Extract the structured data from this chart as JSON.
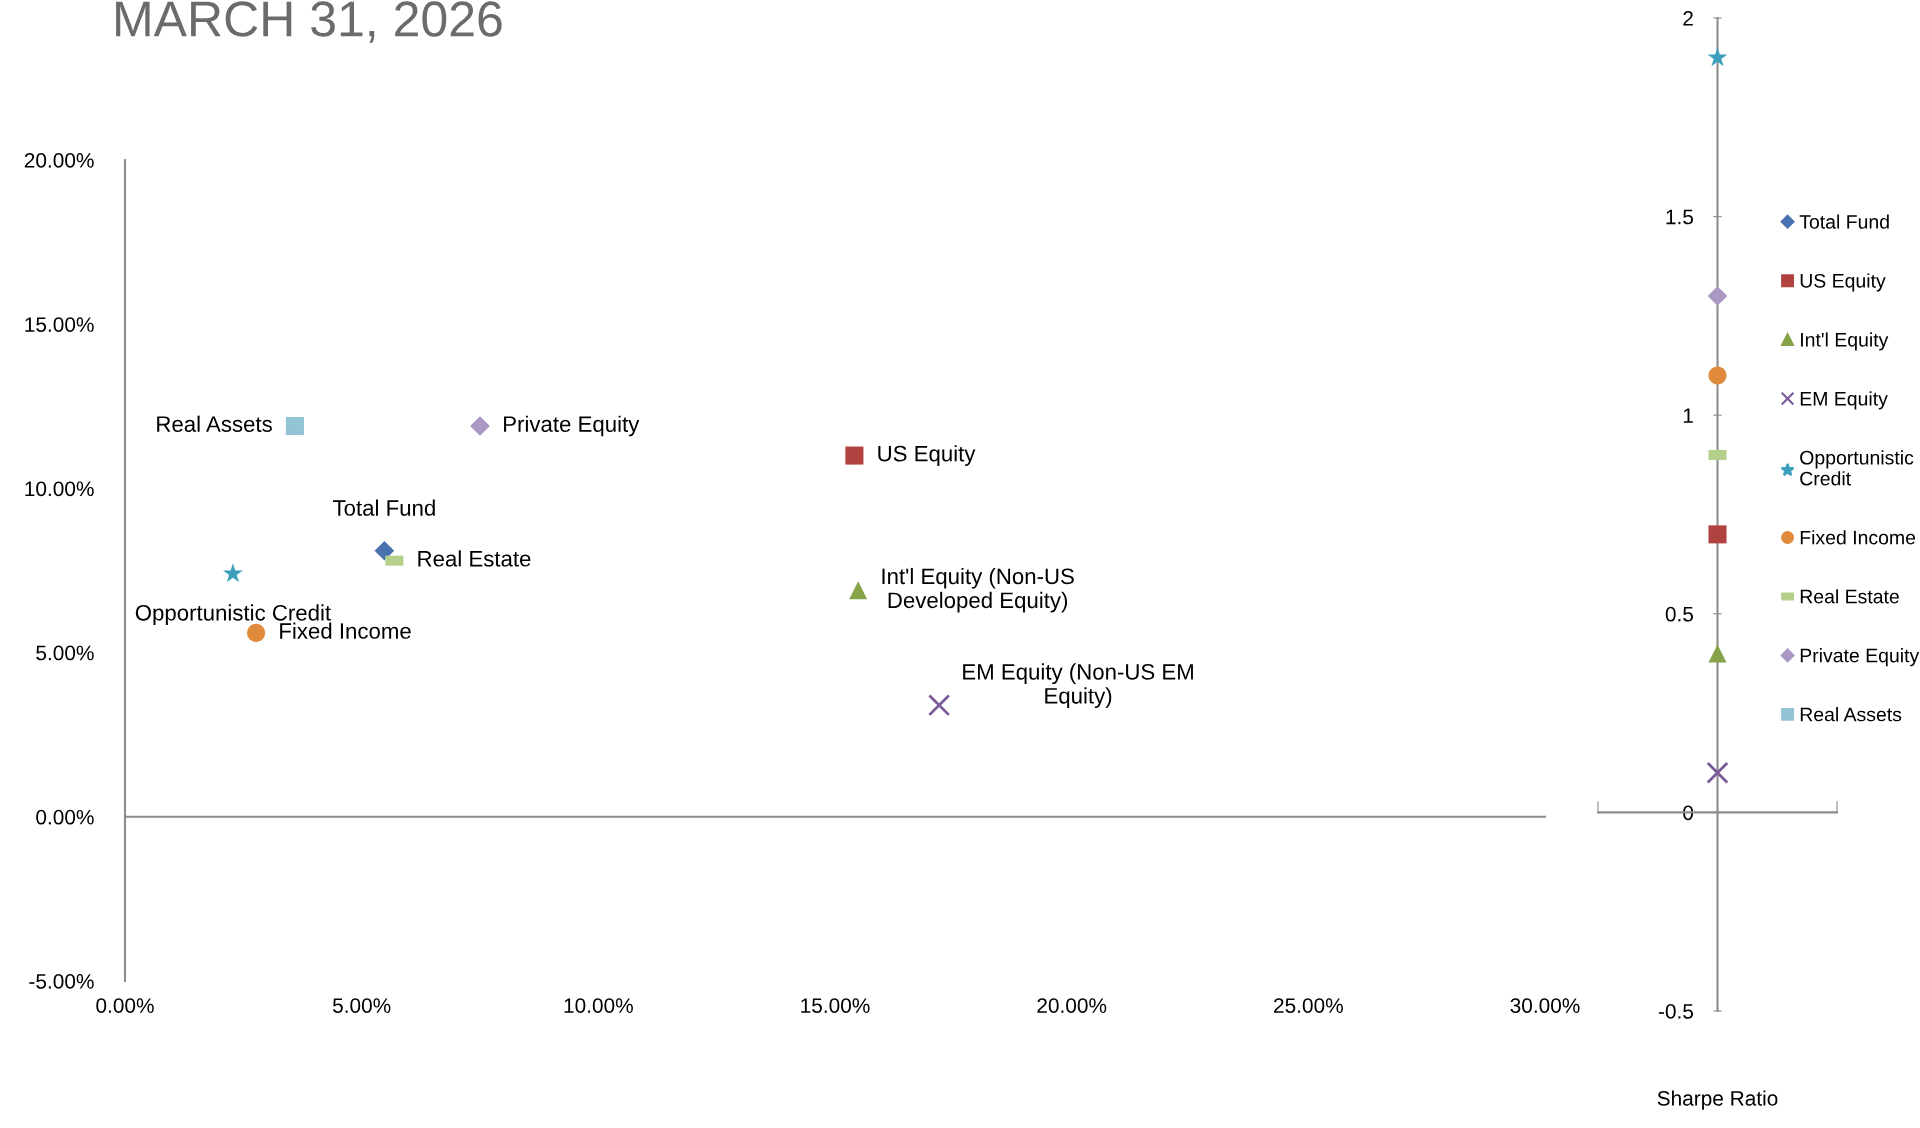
{
  "chart_data": [
    {
      "type": "scatter",
      "title": "MARCH 31, 2026",
      "xlim": [
        0,
        30
      ],
      "ylim": [
        -5,
        20
      ],
      "xticks": [
        {
          "value": 0,
          "label": "0.00%"
        },
        {
          "value": 5,
          "label": "5.00%"
        },
        {
          "value": 10,
          "label": "10.00%"
        },
        {
          "value": 15,
          "label": "15.00%"
        },
        {
          "value": 20,
          "label": "20.00%"
        },
        {
          "value": 25,
          "label": "25.00%"
        },
        {
          "value": 30,
          "label": "30.00%"
        }
      ],
      "yticks": [
        {
          "value": -5,
          "label": "-5.00%"
        },
        {
          "value": 0,
          "label": "0.00%"
        },
        {
          "value": 5,
          "label": "5.00%"
        },
        {
          "value": 10,
          "label": "10.00%"
        },
        {
          "value": 15,
          "label": "15.00%"
        },
        {
          "value": 20,
          "label": "20.00%"
        }
      ],
      "legend": false,
      "series": [
        {
          "color": "#4a72b0",
          "marker": "diamond",
          "x": [
            5.48
          ],
          "values": [
            8.1
          ]
        },
        {
          "color": "#b0423f",
          "marker": "square",
          "x": [
            15.41
          ],
          "values": [
            11.0
          ]
        },
        {
          "color": "#86a34a",
          "marker": "triangle",
          "x": [
            15.49
          ],
          "values": [
            6.9
          ]
        },
        {
          "color": "#7a5b9a",
          "marker": "cross",
          "x": [
            17.2
          ],
          "values": [
            3.4
          ]
        },
        {
          "color": "#3aa0be",
          "marker": "star",
          "x": [
            2.28
          ],
          "values": [
            7.4
          ]
        },
        {
          "color": "#e08a3c",
          "marker": "circle",
          "x": [
            2.77
          ],
          "values": [
            5.6
          ]
        },
        {
          "color": "#b3cf8a",
          "x": [
            5.69
          ],
          "values": [
            7.8
          ]
        },
        {
          "color": "#a898c2",
          "marker": "diamond",
          "x": [
            7.5
          ],
          "values": [
            11.9
          ]
        },
        {
          "color": "#92c4d6",
          "marker": "square",
          "x": [
            3.59
          ],
          "values": [
            11.9
          ]
        }
      ],
      "annotations": [
        {
          "text": "Total Fund",
          "x": 5.48,
          "y": 8.1
        },
        {
          "text": "US Equity",
          "x": 15.41,
          "y": 11.0
        },
        {
          "text": "Int'l Equity (Non-US\nDeveloped Equity)",
          "x": 15.49,
          "y": 6.9
        },
        {
          "text": "EM Equity (Non-US EM\nEquity)",
          "x": 17.2,
          "y": 3.4
        },
        {
          "text": "Opportunistic Credit",
          "x": 2.28,
          "y": 7.4
        },
        {
          "text": "Fixed Income",
          "x": 2.77,
          "y": 5.6
        },
        {
          "text": "Real Estate",
          "x": 5.69,
          "y": 7.8
        },
        {
          "text": "Private Equity",
          "x": 7.5,
          "y": 11.9
        },
        {
          "text": "Real Assets",
          "x": 3.59,
          "y": 11.9
        }
      ]
    },
    {
      "type": "scatter",
      "xlabel": "Sharpe Ratio",
      "categories": [
        null
      ],
      "ylim": [
        -0.5,
        2
      ],
      "yticks": [
        {
          "value": -0.5,
          "label": "-0.5"
        },
        0,
        {
          "value": 0.5,
          "label": "0.5"
        },
        1,
        {
          "value": 1.5,
          "label": "1.5"
        },
        2
      ],
      "legend": "right",
      "series": [
        {
          "name": "Total Fund",
          "color": "#4a72b0",
          "marker": "diamond",
          "values": [
            null
          ]
        },
        {
          "name": "US Equity",
          "color": "#b0423f",
          "marker": "square",
          "values": [
            0.7
          ]
        },
        {
          "name": "Int'l Equity",
          "color": "#86a34a",
          "marker": "triangle",
          "values": [
            0.4
          ]
        },
        {
          "name": "EM Equity",
          "color": "#7a5b9a",
          "marker": "cross",
          "values": [
            0.1
          ]
        },
        {
          "name": "Opportunistic\nCredit",
          "color": "#3aa0be",
          "marker": "star",
          "values": [
            1.9
          ]
        },
        {
          "name": "Fixed Income",
          "color": "#e08a3c",
          "marker": "circle",
          "values": [
            1.1
          ]
        },
        {
          "name": "Real Estate",
          "color": "#b3cf8a",
          "values": [
            0.9
          ]
        },
        {
          "name": "Private Equity",
          "color": "#a898c2",
          "marker": "diamond",
          "values": [
            1.3
          ]
        },
        {
          "name": "Real Assets",
          "color": "#92c4d6",
          "marker": "square",
          "values": [
            null
          ]
        }
      ]
    }
  ]
}
